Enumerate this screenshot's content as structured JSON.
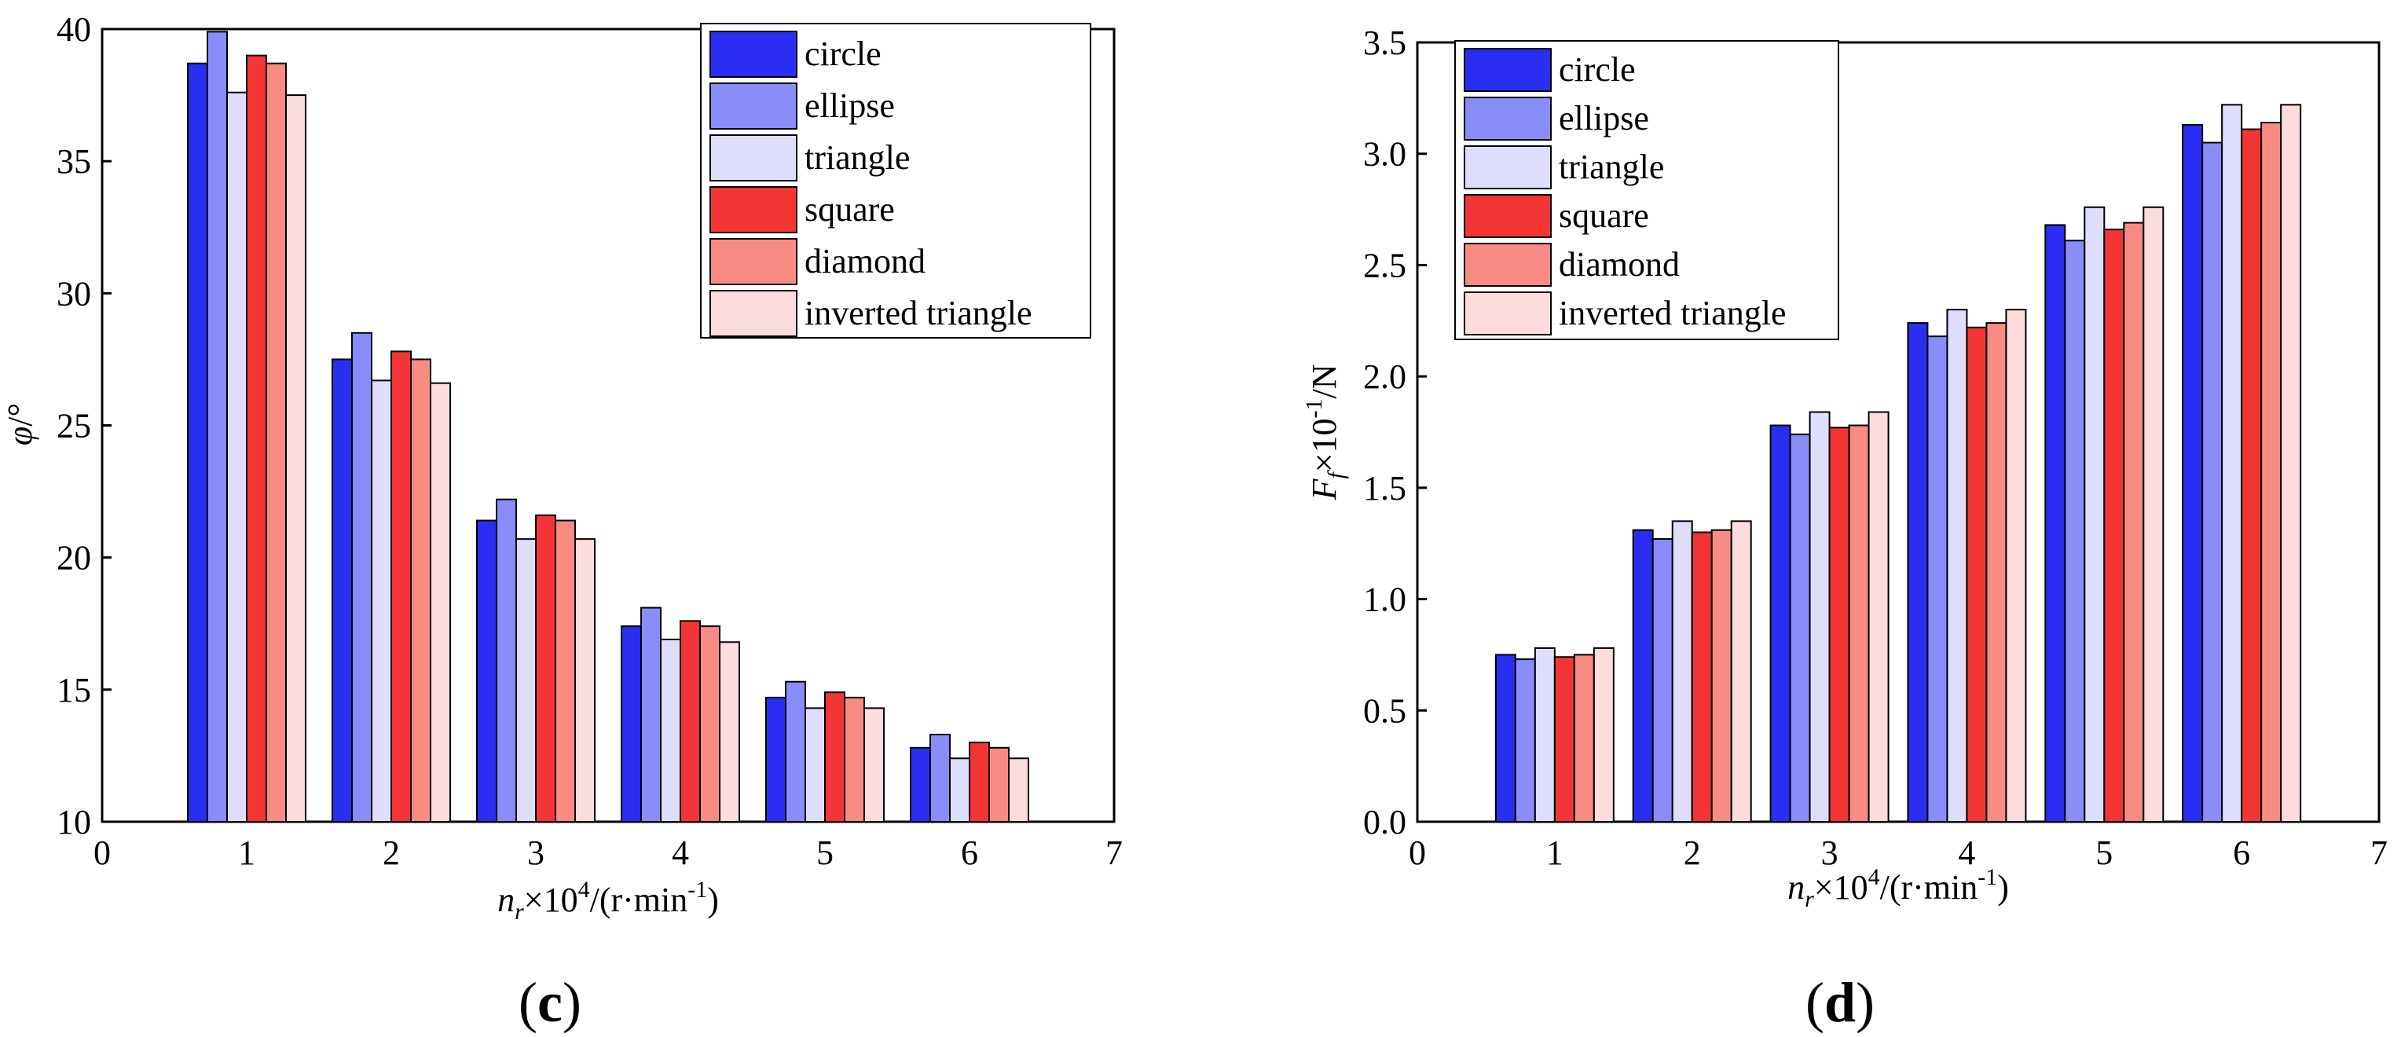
{
  "chart_data": [
    {
      "type": "bar",
      "panel_label": "(c)",
      "ylabel_symbol": "φ",
      "ylabel_unit": "/°",
      "xlabel_parts": [
        "n",
        "r",
        "×10",
        "4",
        "/(r·min",
        "-1",
        ")"
      ],
      "xlim": [
        0,
        7
      ],
      "ylim": [
        10,
        40
      ],
      "xticks": [
        0,
        1,
        2,
        3,
        4,
        5,
        6,
        7
      ],
      "yticks": [
        10,
        15,
        20,
        25,
        30,
        35,
        40
      ],
      "categories": [
        1,
        2,
        3,
        4,
        5,
        6
      ],
      "legend_position": "top-right",
      "series": [
        {
          "name": "circle",
          "color": "#2a2ef2",
          "values": [
            38.7,
            27.5,
            21.4,
            17.4,
            14.7,
            12.8
          ]
        },
        {
          "name": "ellipse",
          "color": "#8a8cfa",
          "values": [
            39.9,
            28.5,
            22.2,
            18.1,
            15.3,
            13.3
          ]
        },
        {
          "name": "triangle",
          "color": "#dedefa",
          "values": [
            37.6,
            26.7,
            20.7,
            16.9,
            14.3,
            12.4
          ]
        },
        {
          "name": "square",
          "color": "#f43535",
          "values": [
            39.0,
            27.8,
            21.6,
            17.6,
            14.9,
            13.0
          ]
        },
        {
          "name": "diamond",
          "color": "#f88c85",
          "values": [
            38.7,
            27.5,
            21.4,
            17.4,
            14.7,
            12.8
          ]
        },
        {
          "name": "inverted triangle",
          "color": "#fcdcdc",
          "values": [
            37.5,
            26.6,
            20.7,
            16.8,
            14.3,
            12.4
          ]
        }
      ]
    },
    {
      "type": "bar",
      "panel_label": "(d)",
      "ylabel_parts": [
        "F",
        "f",
        "×10",
        "-1",
        "/N"
      ],
      "xlabel_parts": [
        "n",
        "r",
        "×10",
        "4",
        "/(r·min",
        "-1",
        ")"
      ],
      "xlim": [
        0,
        7
      ],
      "ylim": [
        0,
        3.5
      ],
      "xticks": [
        0,
        1,
        2,
        3,
        4,
        5,
        6,
        7
      ],
      "yticks": [
        "0.0",
        "0.5",
        "1.0",
        "1.5",
        "2.0",
        "2.5",
        "3.0",
        "3.5"
      ],
      "categories": [
        1,
        2,
        3,
        4,
        5,
        6
      ],
      "legend_position": "top-left",
      "series": [
        {
          "name": "circle",
          "color": "#2a2ef2",
          "values": [
            0.75,
            1.31,
            1.78,
            2.24,
            2.68,
            3.13
          ]
        },
        {
          "name": "ellipse",
          "color": "#8a8cfa",
          "values": [
            0.73,
            1.27,
            1.74,
            2.18,
            2.61,
            3.05
          ]
        },
        {
          "name": "triangle",
          "color": "#dedefa",
          "values": [
            0.78,
            1.35,
            1.84,
            2.3,
            2.76,
            3.22
          ]
        },
        {
          "name": "square",
          "color": "#f43535",
          "values": [
            0.74,
            1.3,
            1.77,
            2.22,
            2.66,
            3.11
          ]
        },
        {
          "name": "diamond",
          "color": "#f88c85",
          "values": [
            0.75,
            1.31,
            1.78,
            2.24,
            2.69,
            3.14
          ]
        },
        {
          "name": "inverted triangle",
          "color": "#fcdcdc",
          "values": [
            0.78,
            1.35,
            1.84,
            2.3,
            2.76,
            3.22
          ]
        }
      ]
    }
  ]
}
